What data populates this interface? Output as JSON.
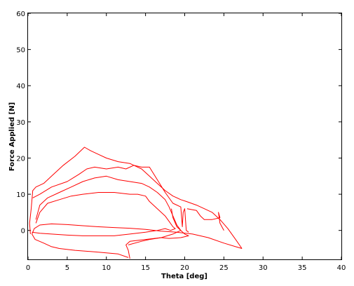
{
  "chart_data": {
    "type": "line",
    "title": "",
    "xlabel": "Theta [deg]",
    "ylabel": "Force Applied [N]",
    "xlim": [
      0,
      40
    ],
    "ylim": [
      -8,
      60
    ],
    "x_ticks": [
      0,
      5,
      10,
      15,
      20,
      25,
      30,
      35,
      40
    ],
    "y_ticks": [
      0,
      10,
      20,
      30,
      40,
      50,
      60
    ],
    "grid": false,
    "legend": "none",
    "line_color": "#ff0000",
    "series": [
      {
        "points": [
          [
            0.3,
            -1
          ],
          [
            0.2,
            2
          ],
          [
            0.4,
            6
          ],
          [
            0.6,
            11
          ],
          [
            1.0,
            12
          ],
          [
            2.0,
            13
          ],
          [
            3.0,
            15
          ],
          [
            4.5,
            18
          ],
          [
            6.0,
            20.5
          ],
          [
            7.2,
            23
          ],
          [
            8.0,
            22
          ],
          [
            9.0,
            21
          ],
          [
            10.0,
            20
          ],
          [
            11.5,
            19
          ],
          [
            13.0,
            18.5
          ],
          [
            14.5,
            17
          ],
          [
            15.5,
            15
          ],
          [
            16.5,
            13
          ],
          [
            17.5,
            11
          ],
          [
            18.5,
            9.5
          ],
          [
            19.5,
            8.5
          ],
          [
            20.2,
            8
          ],
          [
            21.5,
            7
          ],
          [
            22.5,
            6
          ],
          [
            23.5,
            5
          ],
          [
            24.5,
            3
          ],
          [
            25.5,
            0.5
          ],
          [
            26.5,
            -2.5
          ],
          [
            27.3,
            -5
          ]
        ]
      },
      {
        "points": [
          [
            27.3,
            -5
          ],
          [
            26.5,
            -4.5
          ],
          [
            25.0,
            -3.5
          ],
          [
            23.0,
            -2
          ],
          [
            21.0,
            -1
          ],
          [
            19.0,
            -0.5
          ],
          [
            17.0,
            -0.2
          ],
          [
            15.0,
            0.3
          ],
          [
            13.0,
            0.6
          ],
          [
            11.0,
            0.8
          ],
          [
            9.0,
            1
          ],
          [
            7.0,
            1.3
          ],
          [
            5.0,
            1.6
          ],
          [
            3.0,
            1.8
          ],
          [
            1.5,
            1.5
          ],
          [
            0.8,
            0.5
          ],
          [
            0.5,
            -1
          ],
          [
            0.9,
            -2.5
          ],
          [
            2.0,
            -3.5
          ],
          [
            3.0,
            -4.5
          ],
          [
            4.0,
            -5
          ],
          [
            6.0,
            -5.5
          ],
          [
            9.0,
            -6
          ],
          [
            11.5,
            -6.5
          ],
          [
            12.8,
            -7.5
          ]
        ]
      },
      {
        "points": [
          [
            0.6,
            9
          ],
          [
            1.5,
            10
          ],
          [
            3.0,
            12
          ],
          [
            5.0,
            13.5
          ],
          [
            6.5,
            15.5
          ],
          [
            7.5,
            17
          ],
          [
            8.5,
            17.5
          ],
          [
            10.0,
            17
          ],
          [
            11.5,
            17.5
          ],
          [
            12.5,
            17
          ],
          [
            13.5,
            18
          ],
          [
            14.5,
            17.5
          ],
          [
            15.5,
            17.5
          ],
          [
            16.5,
            14
          ],
          [
            17.5,
            10.5
          ],
          [
            18.5,
            7.5
          ],
          [
            19.5,
            6.5
          ],
          [
            19.7,
            1
          ],
          [
            19.8,
            5
          ],
          [
            20.0,
            6
          ],
          [
            20.2,
            0
          ],
          [
            20.5,
            -0.5
          ]
        ]
      },
      {
        "points": [
          [
            1.0,
            3
          ],
          [
            1.5,
            7
          ],
          [
            2.5,
            9
          ],
          [
            4.0,
            10.5
          ],
          [
            5.5,
            12
          ],
          [
            7.0,
            13.5
          ],
          [
            8.5,
            14.5
          ],
          [
            10.0,
            15
          ],
          [
            11.5,
            14
          ],
          [
            13.0,
            13.5
          ],
          [
            14.5,
            13
          ],
          [
            15.5,
            12
          ],
          [
            16.5,
            10.5
          ],
          [
            17.5,
            8.5
          ],
          [
            18.0,
            6.5
          ],
          [
            18.5,
            4
          ],
          [
            19.0,
            1.5
          ],
          [
            19.5,
            0
          ],
          [
            18.5,
            -1
          ],
          [
            17.0,
            -2
          ],
          [
            15.0,
            -2.5
          ],
          [
            13.0,
            -3
          ],
          [
            12.5,
            -4
          ],
          [
            12.8,
            -5.5
          ],
          [
            13.0,
            -7.8
          ]
        ]
      },
      {
        "points": [
          [
            1.0,
            2
          ],
          [
            1.5,
            5
          ],
          [
            2.5,
            7.5
          ],
          [
            4.0,
            8.5
          ],
          [
            5.5,
            9.5
          ],
          [
            7.0,
            10
          ],
          [
            9.0,
            10.5
          ],
          [
            11.0,
            10.5
          ],
          [
            13.0,
            10
          ],
          [
            14.0,
            10
          ],
          [
            15.0,
            9.5
          ],
          [
            15.5,
            8
          ],
          [
            16.5,
            6
          ],
          [
            17.5,
            4
          ],
          [
            18.0,
            2.5
          ],
          [
            18.5,
            1
          ],
          [
            18.8,
            0.5
          ],
          [
            18.2,
            0
          ],
          [
            17.5,
            0.5
          ],
          [
            16.5,
            0
          ],
          [
            15.0,
            -0.5
          ],
          [
            13.0,
            -1
          ],
          [
            11.0,
            -1.5
          ],
          [
            9.0,
            -1.5
          ],
          [
            7.0,
            -1.5
          ],
          [
            5.0,
            -1.3
          ],
          [
            3.0,
            -1
          ],
          [
            1.5,
            -0.8
          ],
          [
            0.5,
            -0.5
          ]
        ]
      },
      {
        "points": [
          [
            18.3,
            6
          ],
          [
            18.5,
            3.5
          ],
          [
            19.0,
            1
          ],
          [
            19.5,
            0
          ],
          [
            20.0,
            -1
          ],
          [
            20.5,
            -1.5
          ],
          [
            19.5,
            -2
          ],
          [
            18.0,
            -2.2
          ],
          [
            17.0,
            -2
          ],
          [
            15.5,
            -2.5
          ],
          [
            14.5,
            -3
          ],
          [
            12.8,
            -4
          ]
        ]
      },
      {
        "points": [
          [
            20.3,
            6
          ],
          [
            21.5,
            5.5
          ],
          [
            22.0,
            4
          ],
          [
            22.5,
            3
          ],
          [
            23.5,
            3
          ],
          [
            24.5,
            3.5
          ],
          [
            24.3,
            5
          ],
          [
            24.5,
            2
          ],
          [
            25.0,
            0
          ]
        ]
      }
    ]
  }
}
